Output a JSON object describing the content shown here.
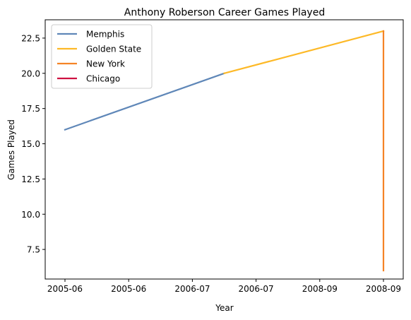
{
  "chart_data": {
    "type": "line",
    "title": "Anthony Roberson Career Games Played",
    "xlabel": "Year",
    "ylabel": "Games Played",
    "x_tick_labels": [
      "2005-06",
      "2005-06",
      "2006-07",
      "2006-07",
      "2008-09",
      "2008-09"
    ],
    "x_range": [
      0,
      5
    ],
    "ylim": [
      5.4,
      23.8
    ],
    "y_ticks": [
      7.5,
      10.0,
      12.5,
      15.0,
      17.5,
      20.0,
      22.5
    ],
    "y_tick_labels": [
      "7.5",
      "10.0",
      "12.5",
      "15.0",
      "17.5",
      "20.0",
      "22.5"
    ],
    "grid": false,
    "legend_position": "top-left",
    "series": [
      {
        "name": "Memphis",
        "color": "#5f87b8",
        "points": [
          [
            0,
            16
          ],
          [
            2.5,
            20
          ]
        ]
      },
      {
        "name": "Golden State",
        "color": "#fdb927",
        "points": [
          [
            2.5,
            20
          ],
          [
            5,
            23
          ]
        ]
      },
      {
        "name": "New York",
        "color": "#f58426",
        "points": [
          [
            5,
            23
          ],
          [
            5,
            6
          ]
        ]
      },
      {
        "name": "Chicago",
        "color": "#ce1141",
        "points": []
      }
    ]
  }
}
